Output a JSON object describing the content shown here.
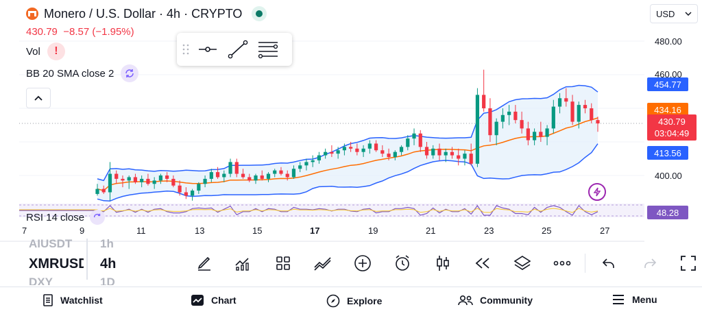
{
  "header": {
    "title": "Monero / U.S. Dollar · 4h · CRYPTO",
    "price": "430.79",
    "change": "−8.57 (−1.95%)",
    "live_status": "market-open"
  },
  "indicators": {
    "volume_label": "Vol",
    "bb_label": "BB 20 SMA close 2",
    "rsi_label": "RSI 14 close"
  },
  "currency_select": {
    "value": "USD"
  },
  "price_axis": {
    "ticks": [
      "480.00",
      "460.00",
      "400.00"
    ],
    "tags": {
      "upper_band": "454.77",
      "basis": "434.16",
      "current_price": "430.79",
      "countdown": "03:04:49",
      "lower_band": "413.56",
      "rsi": "48.28"
    }
  },
  "time_axis": {
    "labels": [
      "7",
      "9",
      "11",
      "13",
      "15",
      "17",
      "19",
      "21",
      "23",
      "25",
      "27"
    ]
  },
  "symbol_list": {
    "above": {
      "symbol": "AIUSDT",
      "interval": "1h"
    },
    "current": {
      "symbol": "XMRUSD",
      "interval": "4h"
    },
    "below": {
      "symbol": "DXY",
      "interval": "1D"
    }
  },
  "bottom_toolbar": [
    "drawing-brush-icon",
    "indicators-icon",
    "templates-icon",
    "compare-icon",
    "add-icon",
    "alert-clock-icon",
    "chart-style-candles-icon",
    "replay-icon",
    "layers-icon",
    "more-icon",
    "undo-icon",
    "redo-icon",
    "fullscreen-icon"
  ],
  "nav": {
    "watchlist": "Watchlist",
    "chart": "Chart",
    "explore": "Explore",
    "community": "Community",
    "menu": "Menu"
  },
  "colors": {
    "up": "#089981",
    "down": "#f23645",
    "bb_band": "#2962ff",
    "bb_basis": "#ff6d00",
    "rsi": "#7e57c2"
  },
  "chart_data": {
    "type": "candlestick",
    "title": "Monero / U.S. Dollar · 4h · CRYPTO",
    "x_labels": [
      "7",
      "9",
      "11",
      "13",
      "15",
      "17",
      "19",
      "21",
      "23",
      "25",
      "27"
    ],
    "y_ticks": [
      480,
      460,
      400
    ],
    "candles_ohlc": [
      [
        389,
        395,
        388,
        392
      ],
      [
        392,
        394,
        389,
        390
      ],
      [
        390,
        408,
        385,
        401
      ],
      [
        401,
        403,
        395,
        398
      ],
      [
        398,
        400,
        393,
        397
      ],
      [
        397,
        400,
        392,
        399
      ],
      [
        399,
        401,
        395,
        396
      ],
      [
        396,
        400,
        393,
        398
      ],
      [
        398,
        401,
        394,
        395
      ],
      [
        395,
        399,
        392,
        397
      ],
      [
        397,
        401,
        395,
        400
      ],
      [
        400,
        402,
        396,
        398
      ],
      [
        398,
        400,
        393,
        394
      ],
      [
        394,
        397,
        388,
        390
      ],
      [
        390,
        393,
        386,
        388
      ],
      [
        388,
        392,
        385,
        391
      ],
      [
        391,
        396,
        389,
        395
      ],
      [
        395,
        400,
        393,
        398
      ],
      [
        398,
        404,
        396,
        402
      ],
      [
        402,
        405,
        398,
        399
      ],
      [
        399,
        403,
        396,
        401
      ],
      [
        401,
        410,
        399,
        408
      ],
      [
        408,
        410,
        399,
        401
      ],
      [
        401,
        404,
        398,
        399
      ],
      [
        399,
        401,
        396,
        397
      ],
      [
        397,
        401,
        395,
        400
      ],
      [
        400,
        403,
        397,
        398
      ],
      [
        398,
        402,
        396,
        401
      ],
      [
        401,
        404,
        399,
        403
      ],
      [
        403,
        405,
        400,
        401
      ],
      [
        401,
        403,
        397,
        399
      ],
      [
        399,
        406,
        398,
        404
      ],
      [
        404,
        408,
        402,
        406
      ],
      [
        406,
        410,
        403,
        408
      ],
      [
        408,
        412,
        405,
        409
      ],
      [
        409,
        414,
        407,
        412
      ],
      [
        412,
        416,
        410,
        414
      ],
      [
        414,
        418,
        411,
        413
      ],
      [
        413,
        417,
        410,
        415
      ],
      [
        415,
        419,
        412,
        417
      ],
      [
        417,
        420,
        414,
        416
      ],
      [
        416,
        419,
        412,
        414
      ],
      [
        414,
        418,
        411,
        416
      ],
      [
        416,
        421,
        413,
        419
      ],
      [
        419,
        421,
        414,
        415
      ],
      [
        415,
        418,
        411,
        413
      ],
      [
        413,
        416,
        409,
        411
      ],
      [
        411,
        415,
        409,
        414
      ],
      [
        414,
        418,
        412,
        417
      ],
      [
        417,
        424,
        415,
        422
      ],
      [
        422,
        428,
        418,
        425
      ],
      [
        425,
        427,
        414,
        417
      ],
      [
        417,
        420,
        410,
        412
      ],
      [
        412,
        418,
        410,
        416
      ],
      [
        416,
        419,
        409,
        412
      ],
      [
        412,
        416,
        408,
        414
      ],
      [
        414,
        417,
        410,
        412
      ],
      [
        412,
        416,
        406,
        410
      ],
      [
        410,
        415,
        406,
        413
      ],
      [
        413,
        419,
        406,
        407
      ],
      [
        407,
        452,
        405,
        448
      ],
      [
        448,
        463,
        438,
        440
      ],
      [
        440,
        446,
        420,
        424
      ],
      [
        424,
        434,
        418,
        432
      ],
      [
        432,
        440,
        428,
        436
      ],
      [
        436,
        442,
        430,
        438
      ],
      [
        438,
        442,
        431,
        433
      ],
      [
        433,
        438,
        425,
        428
      ],
      [
        428,
        432,
        418,
        421
      ],
      [
        421,
        428,
        418,
        426
      ],
      [
        426,
        432,
        420,
        423
      ],
      [
        423,
        430,
        418,
        428
      ],
      [
        428,
        445,
        425,
        441
      ],
      [
        441,
        449,
        437,
        446
      ],
      [
        446,
        452,
        441,
        444
      ],
      [
        444,
        448,
        430,
        432
      ],
      [
        432,
        444,
        428,
        442
      ],
      [
        442,
        445,
        437,
        440
      ],
      [
        440,
        443,
        431,
        433
      ],
      [
        433,
        435,
        426,
        431
      ]
    ],
    "series": [
      {
        "name": "BB Upper",
        "last": 454.77
      },
      {
        "name": "BB Basis",
        "last": 434.16
      },
      {
        "name": "BB Lower",
        "last": 413.56
      },
      {
        "name": "RSI 14",
        "last": 48.28
      }
    ]
  }
}
